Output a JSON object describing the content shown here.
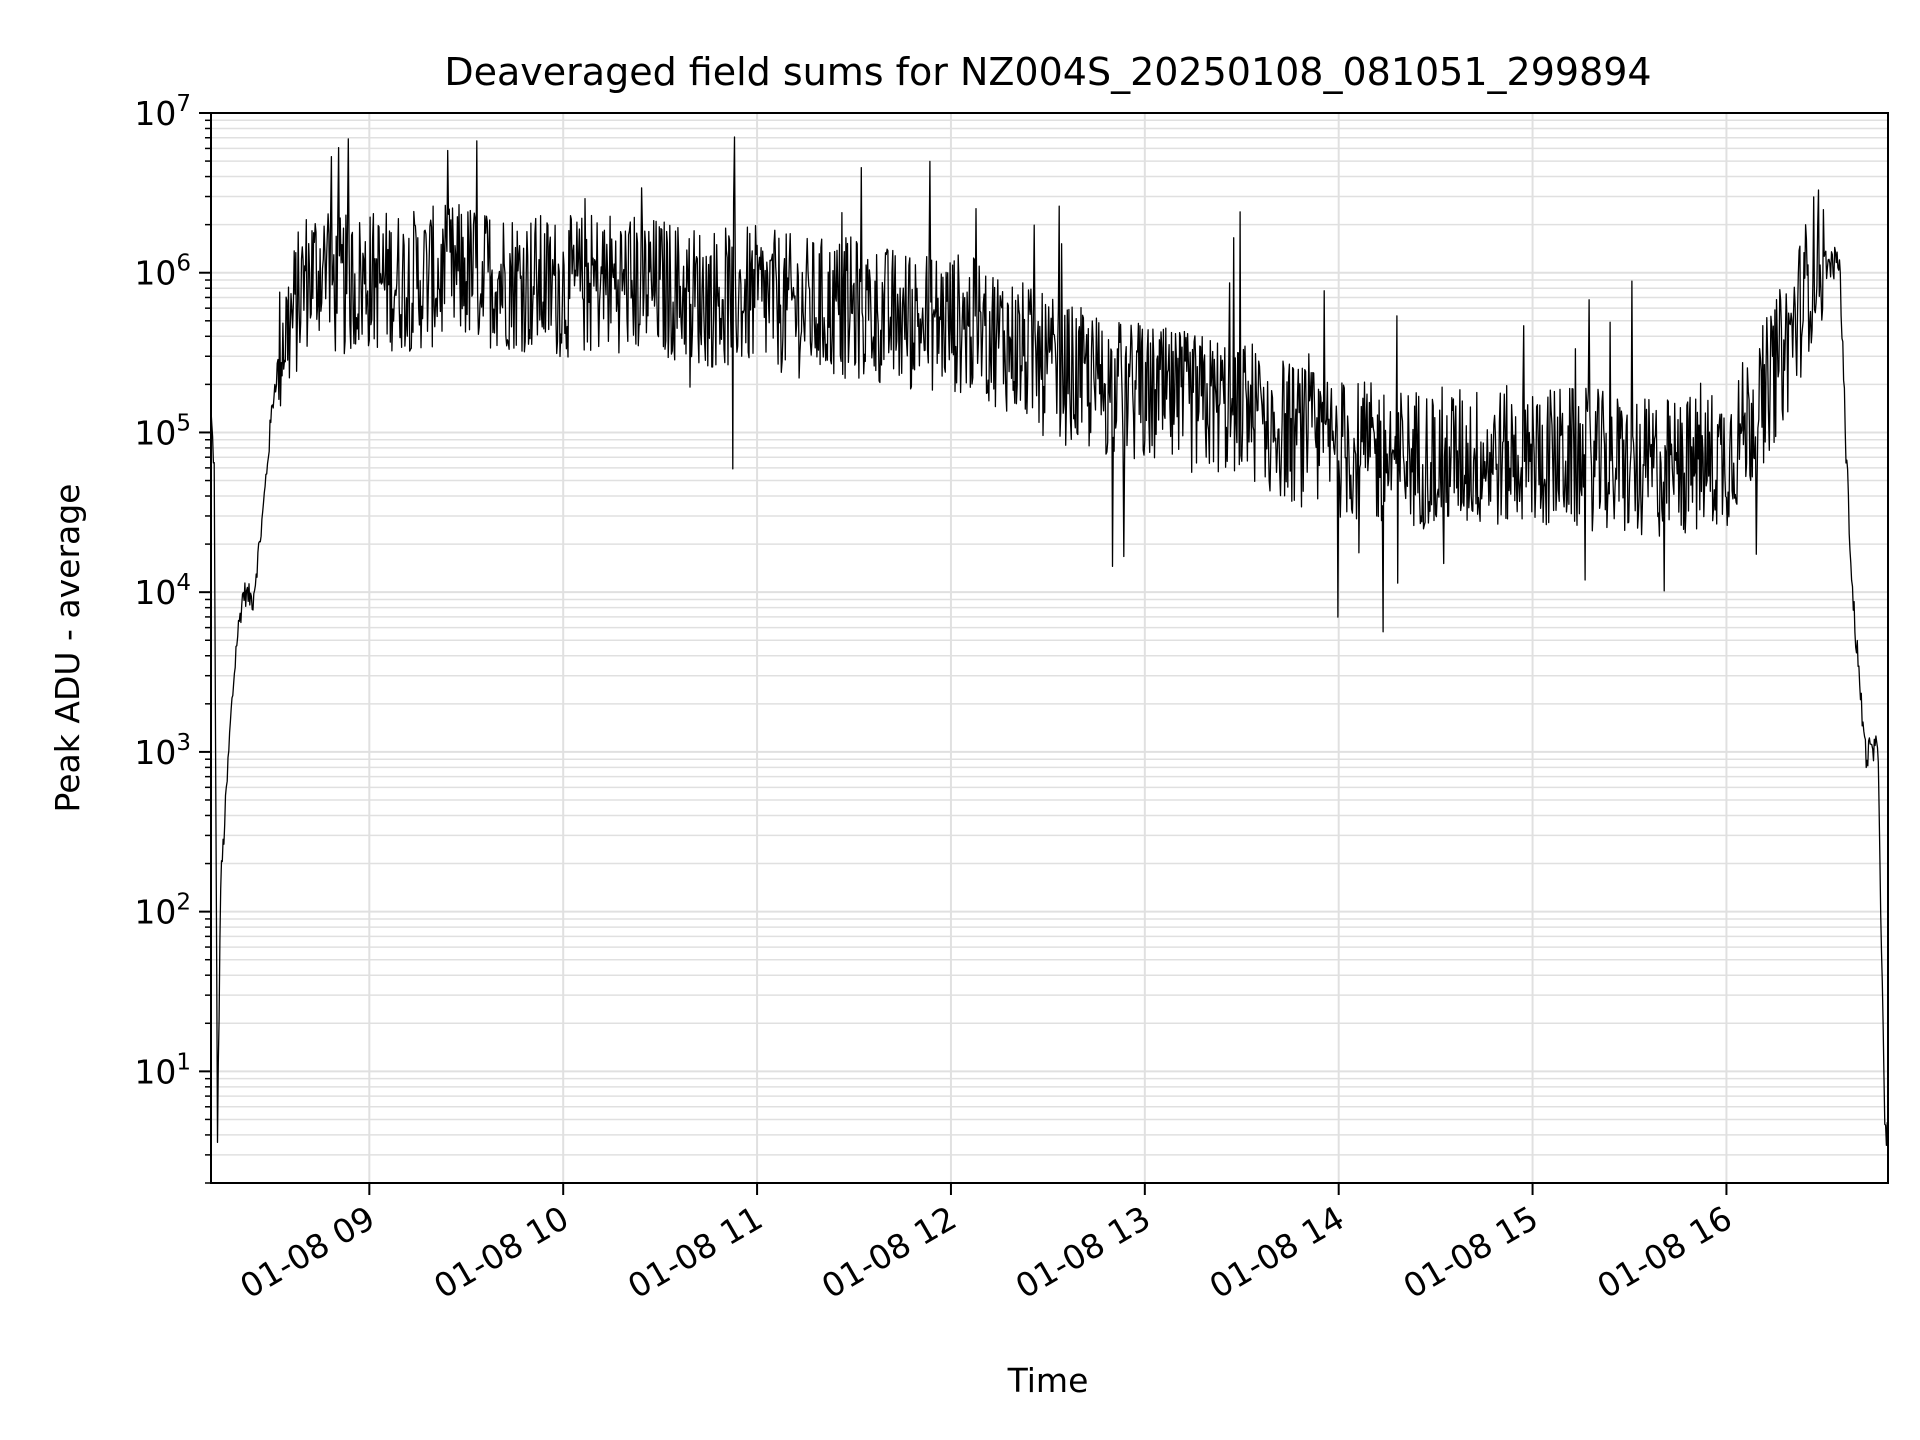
{
  "chart_data": {
    "type": "line",
    "title": "Deaveraged field sums for NZ004S_20250108_081051_299894",
    "xlabel": "Time",
    "ylabel": "Peak ADU - average",
    "yscale": "log",
    "ylim": [
      2,
      10000000
    ],
    "xlim": [
      "2025-01-08 08:11",
      "2025-01-08 16:50"
    ],
    "grid": true,
    "line_color": "#000000",
    "grid_color": "#e0e0e0",
    "x_ticks": [
      {
        "value": "2025-01-08 09:00",
        "label": "01-08 09"
      },
      {
        "value": "2025-01-08 10:00",
        "label": "01-08 10"
      },
      {
        "value": "2025-01-08 11:00",
        "label": "01-08 11"
      },
      {
        "value": "2025-01-08 12:00",
        "label": "01-08 12"
      },
      {
        "value": "2025-01-08 13:00",
        "label": "01-08 13"
      },
      {
        "value": "2025-01-08 14:00",
        "label": "01-08 14"
      },
      {
        "value": "2025-01-08 15:00",
        "label": "01-08 15"
      },
      {
        "value": "2025-01-08 16:00",
        "label": "01-08 16"
      }
    ],
    "y_ticks": [
      {
        "value": 10,
        "base": "10",
        "exp": "1"
      },
      {
        "value": 100,
        "base": "10",
        "exp": "2"
      },
      {
        "value": 1000,
        "base": "10",
        "exp": "3"
      },
      {
        "value": 10000,
        "base": "10",
        "exp": "4"
      },
      {
        "value": 100000,
        "base": "10",
        "exp": "5"
      },
      {
        "value": 1000000,
        "base": "10",
        "exp": "6"
      },
      {
        "value": 10000000,
        "base": "10",
        "exp": "7"
      }
    ],
    "series": [
      {
        "x": [
          "2025-01-08 08:11",
          "2025-01-08 08:12",
          "2025-01-08 08:13",
          "2025-01-08 08:14",
          "2025-01-08 08:15",
          "2025-01-08 08:17",
          "2025-01-08 08:19",
          "2025-01-08 08:21",
          "2025-01-08 08:24",
          "2025-01-08 08:27",
          "2025-01-08 08:30",
          "2025-01-08 08:33",
          "2025-01-08 08:36",
          "2025-01-08 08:40",
          "2025-01-08 08:45",
          "2025-01-08 08:50",
          "2025-01-08 09:00",
          "2025-01-08 09:15",
          "2025-01-08 09:30",
          "2025-01-08 09:45",
          "2025-01-08 10:00",
          "2025-01-08 10:15",
          "2025-01-08 10:30",
          "2025-01-08 10:45",
          "2025-01-08 11:00",
          "2025-01-08 11:15",
          "2025-01-08 11:30",
          "2025-01-08 11:45",
          "2025-01-08 12:00",
          "2025-01-08 12:15",
          "2025-01-08 12:30",
          "2025-01-08 12:45",
          "2025-01-08 13:00",
          "2025-01-08 13:15",
          "2025-01-08 13:30",
          "2025-01-08 13:45",
          "2025-01-08 14:00",
          "2025-01-08 14:15",
          "2025-01-08 14:30",
          "2025-01-08 14:45",
          "2025-01-08 15:00",
          "2025-01-08 15:15",
          "2025-01-08 15:30",
          "2025-01-08 15:45",
          "2025-01-08 16:00",
          "2025-01-08 16:10",
          "2025-01-08 16:20",
          "2025-01-08 16:28",
          "2025-01-08 16:32",
          "2025-01-08 16:35",
          "2025-01-08 16:37",
          "2025-01-08 16:39",
          "2025-01-08 16:41",
          "2025-01-08 16:43",
          "2025-01-08 16:45",
          "2025-01-08 16:47",
          "2025-01-08 16:48",
          "2025-01-08 16:49",
          "2025-01-08 16:50"
        ],
        "y": [
          130000,
          60000,
          4,
          150,
          300,
          1500,
          5000,
          10000,
          9000,
          30000,
          150000,
          400000,
          500000,
          900000,
          1100000,
          800000,
          900000,
          900000,
          1000000,
          900000,
          800000,
          900000,
          800000,
          700000,
          700000,
          600000,
          600000,
          500000,
          500000,
          400000,
          250000,
          200000,
          170000,
          150000,
          150000,
          100000,
          80000,
          70000,
          70000,
          70000,
          70000,
          70000,
          60000,
          60000,
          70000,
          150000,
          400000,
          1300000,
          1100000,
          1200000,
          80000,
          10000,
          3000,
          1000,
          1000,
          1000,
          60,
          4,
          4
        ]
      }
    ]
  }
}
